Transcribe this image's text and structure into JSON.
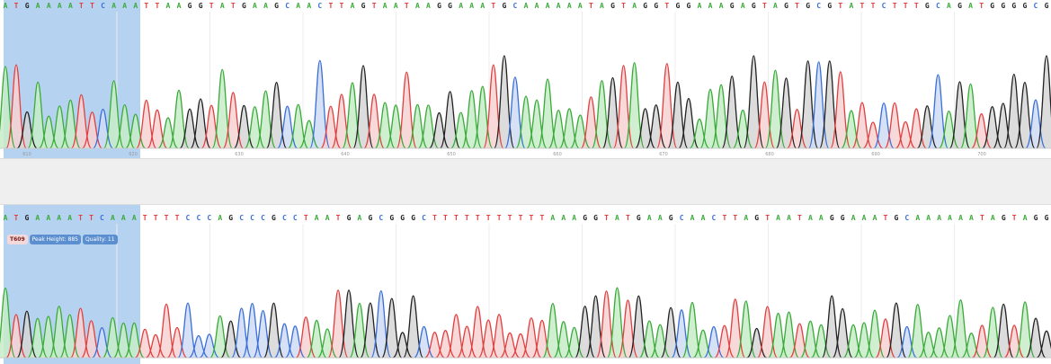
{
  "colors": {
    "A": "#3aaa3a",
    "C": "#3a6fd8",
    "G": "#222222",
    "T": "#e04040",
    "A_fill": "#c8ecc8",
    "C_fill": "#cfdcf5",
    "G_fill": "#d6d6d6",
    "T_fill": "#f7d2d2",
    "selection": "#78afe6",
    "divider": "#efefef"
  },
  "chart_data": [
    {
      "type": "line",
      "name": "chromatogram-top",
      "sequence": "ATGAAAATTCAAATTAAGGTATGAAGCAACTTAGTAATAAGGAAATGCAAAAAATAGTAGGTGGAAAGAGTAGTGCGTATTCTTTGCAGATGGGGCG",
      "x_ticks": [
        "610",
        "620",
        "630",
        "640",
        "650",
        "660",
        "670",
        "680",
        "690",
        "700"
      ],
      "selection_bases": 13
    },
    {
      "type": "line",
      "name": "chromatogram-bottom",
      "sequence": "ATGAAAATTCAAATTTTCCCAGCCCGCCTAATGAGCGGGCTTTTTTTTTTTAAAGGTATGAAGCAACTTAGTAATAAGGAAATGCAAAAAATAGTAGG",
      "x_ticks": [],
      "selection_bases": 13,
      "tooltip": {
        "base": "T609",
        "peak": "Peak Height: 885",
        "quality": "Quality: 11"
      }
    }
  ]
}
